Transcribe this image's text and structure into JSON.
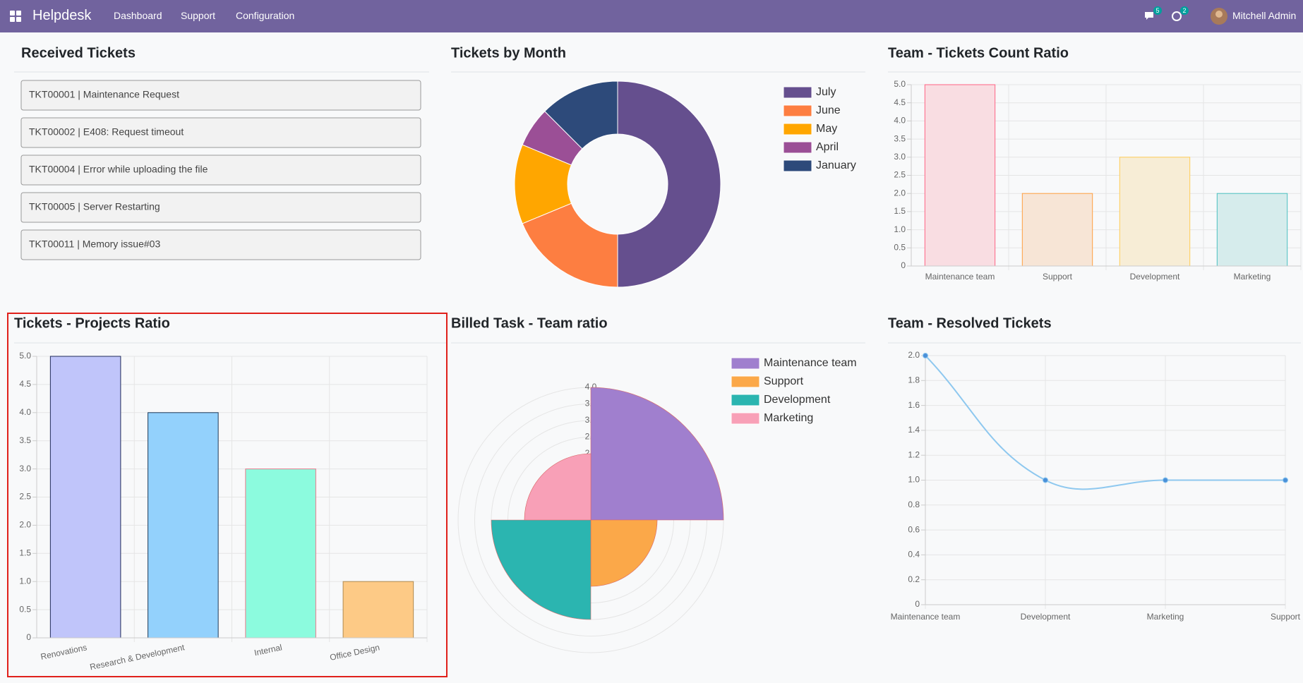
{
  "navbar": {
    "app": "Helpdesk",
    "menu": [
      "Dashboard",
      "Support",
      "Configuration"
    ],
    "messages_count": 5,
    "activities_count": 2,
    "user": "Mitchell Admin"
  },
  "received_tickets": {
    "title": "Received Tickets",
    "items": [
      "TKT00001 | Maintenance Request",
      "TKT00002 | E408: Request timeout",
      "TKT00004 | Error while uploading the file",
      "TKT00005 | Server Restarting",
      "TKT00011 | Memory issue#03"
    ]
  },
  "chart_data": [
    {
      "type": "doughnut",
      "title": "Tickets by Month",
      "categories": [
        "July",
        "June",
        "May",
        "April",
        "January"
      ],
      "values": [
        8,
        3,
        2,
        1,
        2
      ],
      "colors": [
        "#654f8e",
        "#fd7e41",
        "#ffa600",
        "#9b4f96",
        "#2d4a7a"
      ],
      "legend": "top-right"
    },
    {
      "type": "bar",
      "title": "Team - Tickets Count Ratio",
      "categories": [
        "Maintenance team",
        "Support",
        "Development",
        "Marketing"
      ],
      "values": [
        5,
        2,
        3,
        2
      ],
      "colors": [
        "#f9dde2",
        "#f7e5d6",
        "#f7edd6",
        "#d6ecec"
      ],
      "border_colors": [
        "#ff6384",
        "#ff9f40",
        "#ffcd56",
        "#4bc0c0"
      ],
      "ylim": [
        0,
        5
      ],
      "yticks": [
        0,
        0.5,
        {
          "value": 1,
          "label": "1.0"
        },
        1.5,
        {
          "value": 2,
          "label": "2.0"
        },
        2.5,
        {
          "value": 3,
          "label": "3.0"
        },
        3.5,
        {
          "value": 4,
          "label": "4.0"
        },
        4.5,
        {
          "value": 5,
          "label": "5.0"
        }
      ],
      "grid": true
    },
    {
      "type": "bar",
      "title": "Tickets - Projects Ratio",
      "categories": [
        "Renovations",
        "Research & Development",
        "Internal",
        "Office Design"
      ],
      "values": [
        5,
        4,
        3,
        1
      ],
      "colors": [
        "#c0c5fa",
        "#93d1fc",
        "#8cfbde",
        "#fdca86"
      ],
      "border_colors": [
        "#1f2a5a",
        "#1f3a5a",
        "#e87a8c",
        "#b08a50"
      ],
      "ylim": [
        0,
        5
      ],
      "yticks": [
        0,
        0.5,
        {
          "value": 1,
          "label": "1.0"
        },
        1.5,
        {
          "value": 2,
          "label": "2.0"
        },
        2.5,
        {
          "value": 3,
          "label": "3.0"
        },
        3.5,
        {
          "value": 4,
          "label": "4.0"
        },
        4.5,
        {
          "value": 5,
          "label": "5.0"
        }
      ],
      "grid": true
    },
    {
      "type": "polarArea",
      "title": "Billed Task - Team ratio",
      "categories": [
        "Maintenance team",
        "Support",
        "Development",
        "Marketing"
      ],
      "values": [
        4,
        2,
        3,
        2
      ],
      "colors": [
        "#a07fce",
        "#fba849",
        "#2bb5b0",
        "#f8a0b7"
      ],
      "rlim": [
        0,
        4
      ],
      "rticks": [
        0.5,
        {
          "value": 1,
          "label": "1.0"
        },
        1.5,
        {
          "value": 2,
          "label": "2.0"
        },
        2.5,
        {
          "value": 3,
          "label": "3.0"
        },
        3.5,
        {
          "value": 4,
          "label": "4.0"
        }
      ],
      "legend": "top-right"
    },
    {
      "type": "line",
      "title": "Team - Resolved Tickets",
      "categories": [
        "Maintenance team",
        "Development",
        "Marketing",
        "Support"
      ],
      "values": [
        2,
        1,
        1,
        1
      ],
      "color": "#8ec8ef",
      "point_color": "#4a90d9",
      "ylim": [
        0,
        2
      ],
      "yticks": [
        0,
        0.2,
        0.4,
        0.6,
        0.8,
        {
          "value": 1,
          "label": "1.0"
        },
        1.2,
        1.4,
        1.6,
        1.8,
        {
          "value": 2,
          "label": "2.0"
        }
      ],
      "grid": true
    }
  ]
}
